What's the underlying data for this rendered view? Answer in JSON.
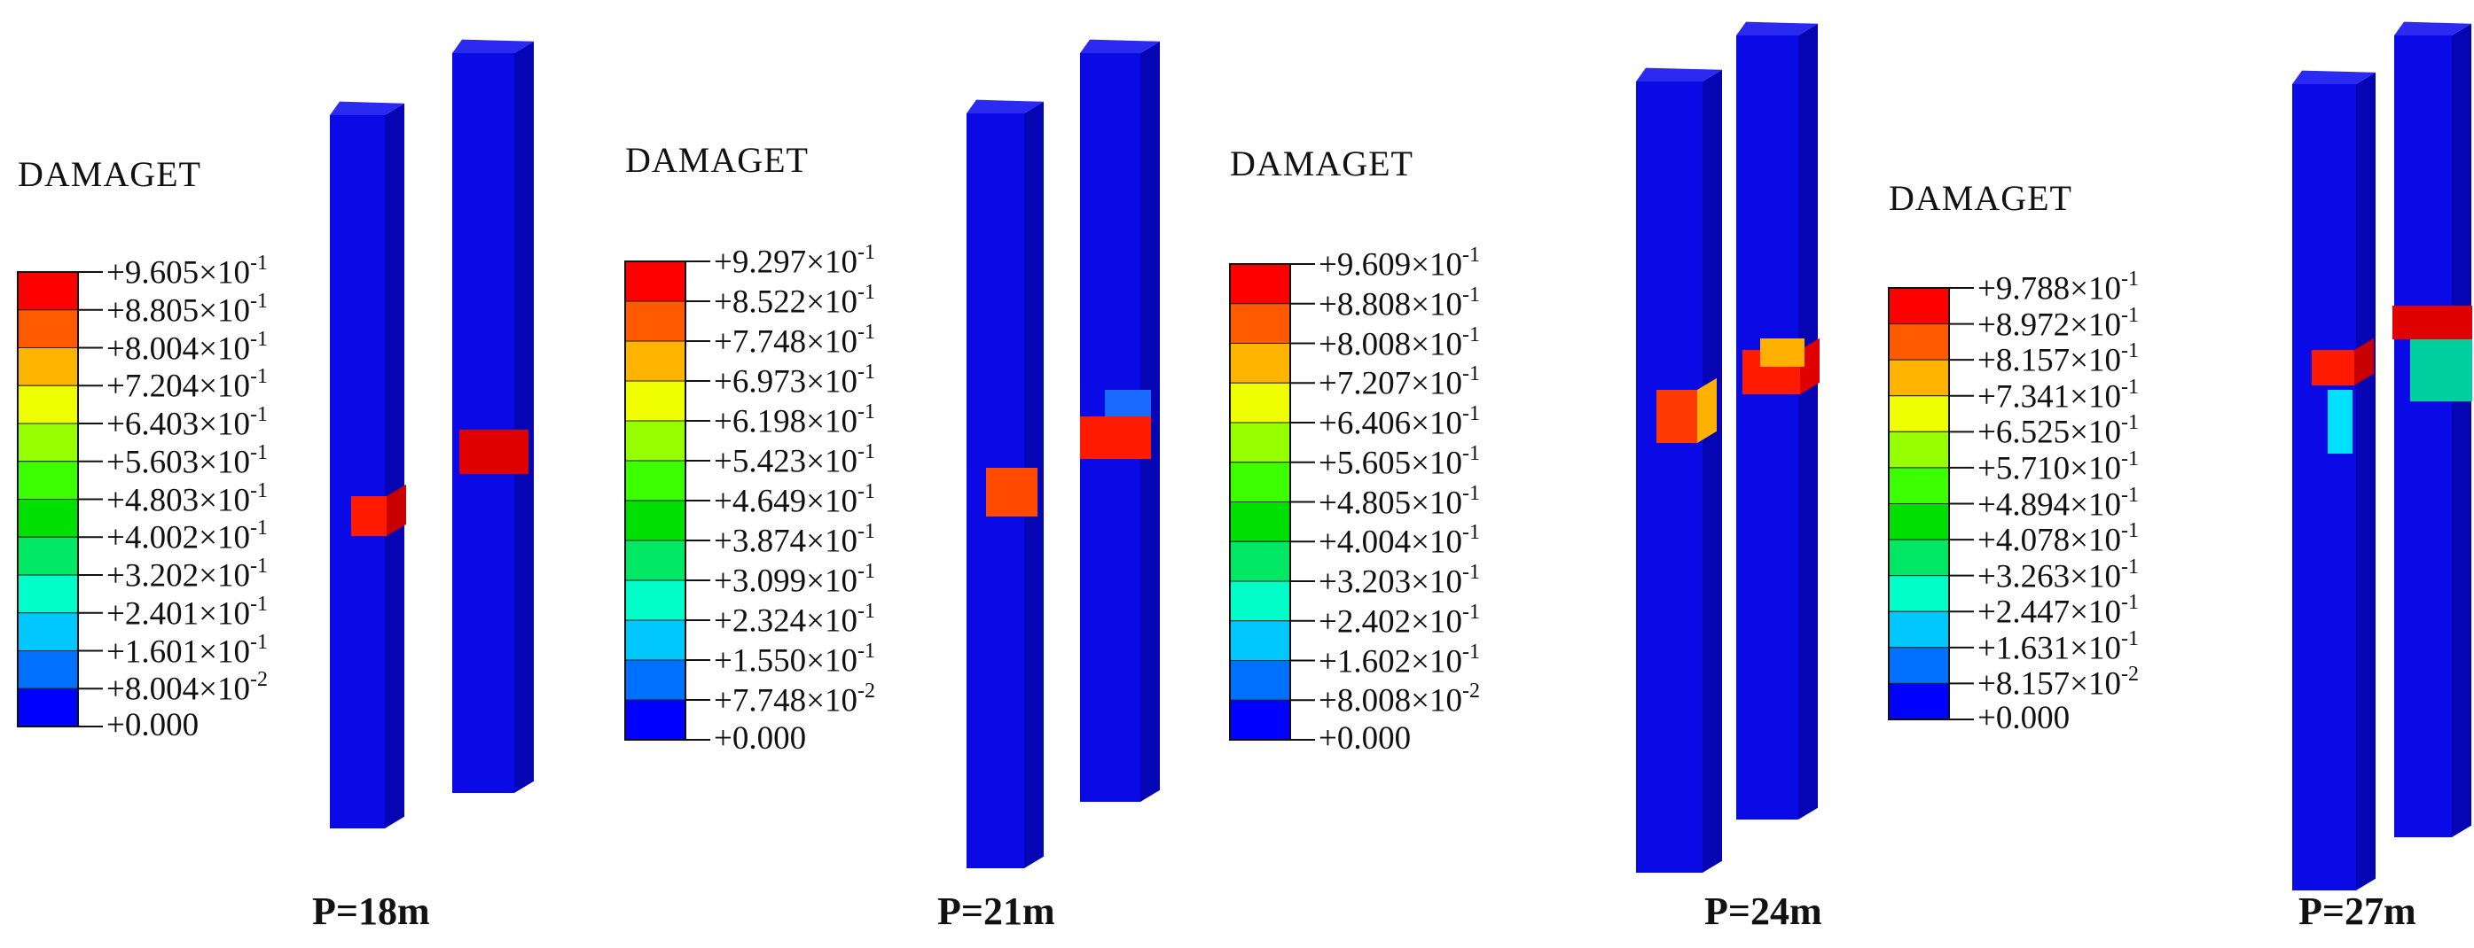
{
  "panels": [
    {
      "title": "DAMAGET",
      "caption": "P=18m",
      "labels": [
        "+9.605×10",
        "+8.805×10",
        "+8.004×10",
        "+7.204×10",
        "+6.403×10",
        "+5.603×10",
        "+4.803×10",
        "+4.002×10",
        "+3.202×10",
        "+2.401×10",
        "+1.601×10",
        "+8.004×10",
        "+0.000"
      ],
      "exponents": [
        "-1",
        "-1",
        "-1",
        "-1",
        "-1",
        "-1",
        "-1",
        "-1",
        "-1",
        "-1",
        "-1",
        "-2",
        ""
      ]
    },
    {
      "title": "DAMAGET",
      "caption": "P=21m",
      "labels": [
        "+9.297×10",
        "+8.522×10",
        "+7.748×10",
        "+6.973×10",
        "+6.198×10",
        "+5.423×10",
        "+4.649×10",
        "+3.874×10",
        "+3.099×10",
        "+2.324×10",
        "+1.550×10",
        "+7.748×10",
        "+0.000"
      ],
      "exponents": [
        "-1",
        "-1",
        "-1",
        "-1",
        "-1",
        "-1",
        "-1",
        "-1",
        "-1",
        "-1",
        "-1",
        "-2",
        ""
      ]
    },
    {
      "title": "DAMAGET",
      "caption": "P=24m",
      "labels": [
        "+9.609×10",
        "+8.808×10",
        "+8.008×10",
        "+7.207×10",
        "+6.406×10",
        "+5.605×10",
        "+4.805×10",
        "+4.004×10",
        "+3.203×10",
        "+2.402×10",
        "+1.602×10",
        "+8.008×10",
        "+0.000"
      ],
      "exponents": [
        "-1",
        "-1",
        "-1",
        "-1",
        "-1",
        "-1",
        "-1",
        "-1",
        "-1",
        "-1",
        "-1",
        "-2",
        ""
      ]
    },
    {
      "title": "DAMAGET",
      "caption": "P=27m",
      "labels": [
        "+9.788×10",
        "+8.972×10",
        "+8.157×10",
        "+7.341×10",
        "+6.525×10",
        "+5.710×10",
        "+4.894×10",
        "+4.078×10",
        "+3.263×10",
        "+2.447×10",
        "+1.631×10",
        "+8.157×10",
        "+0.000"
      ],
      "exponents": [
        "-1",
        "-1",
        "-1",
        "-1",
        "-1",
        "-1",
        "-1",
        "-1",
        "-1",
        "-1",
        "-1",
        "-2",
        ""
      ]
    }
  ],
  "colormap": [
    "#ff0000",
    "#ff5a00",
    "#ffb400",
    "#f0ff00",
    "#96ff00",
    "#3cff00",
    "#00e000",
    "#00e864",
    "#00ffc8",
    "#00c8ff",
    "#0070ff",
    "#0000ff"
  ],
  "pile_color": "#0a0ae6"
}
